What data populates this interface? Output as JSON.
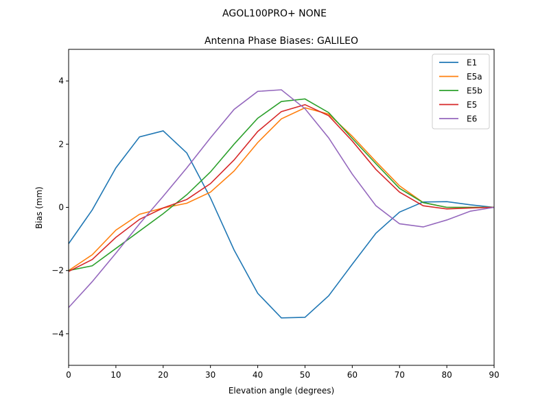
{
  "suptitle": "AGOL100PRO+     NONE",
  "chart_data": {
    "type": "line",
    "title": "Antenna Phase Biases: GALILEO",
    "xlabel": "Elevation angle (degrees)",
    "ylabel": "Bias (mm)",
    "xlim": [
      0,
      90
    ],
    "ylim": [
      -5,
      5
    ],
    "xticks": [
      0,
      10,
      20,
      30,
      40,
      50,
      60,
      70,
      80,
      90
    ],
    "yticks": [
      -4,
      -2,
      0,
      2,
      4
    ],
    "grid": false,
    "legend_placement": "top-right",
    "x": [
      0,
      5,
      10,
      15,
      20,
      25,
      30,
      35,
      40,
      45,
      50,
      55,
      60,
      65,
      70,
      75,
      80,
      85,
      90
    ],
    "series": [
      {
        "name": "E1",
        "color": "#1f77b4",
        "values": [
          -1.15,
          -0.08,
          1.25,
          2.23,
          2.42,
          1.72,
          0.3,
          -1.35,
          -2.72,
          -3.5,
          -3.48,
          -2.8,
          -1.8,
          -0.82,
          -0.15,
          0.17,
          0.18,
          0.08,
          0
        ]
      },
      {
        "name": "E5a",
        "color": "#ff7f0e",
        "values": [
          -2.0,
          -1.5,
          -0.72,
          -0.22,
          -0.02,
          0.13,
          0.48,
          1.15,
          2.05,
          2.8,
          3.15,
          2.95,
          2.25,
          1.45,
          0.68,
          0.15,
          0.0,
          0.0,
          0
        ]
      },
      {
        "name": "E5b",
        "color": "#2ca02c",
        "values": [
          -2.0,
          -1.85,
          -1.3,
          -0.75,
          -0.2,
          0.4,
          1.12,
          2.0,
          2.82,
          3.35,
          3.43,
          3.0,
          2.18,
          1.38,
          0.6,
          0.15,
          0.0,
          0.0,
          0
        ]
      },
      {
        "name": "E5",
        "color": "#d62728",
        "values": [
          -2.03,
          -1.65,
          -0.95,
          -0.38,
          -0.02,
          0.25,
          0.75,
          1.5,
          2.4,
          3.03,
          3.25,
          2.9,
          2.1,
          1.2,
          0.48,
          0.05,
          -0.05,
          -0.02,
          0
        ]
      },
      {
        "name": "E6",
        "color": "#9467bd",
        "values": [
          -3.17,
          -2.35,
          -1.45,
          -0.52,
          0.35,
          1.25,
          2.2,
          3.1,
          3.67,
          3.72,
          3.12,
          2.2,
          1.05,
          0.05,
          -0.52,
          -0.62,
          -0.4,
          -0.12,
          0
        ]
      }
    ]
  }
}
